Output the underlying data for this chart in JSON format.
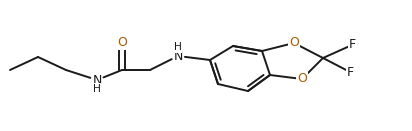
{
  "bg_color": "#ffffff",
  "bond_color": "#1a1a1a",
  "atom_color_O": "#b05a00",
  "atom_color_N": "#1a1a1a",
  "atom_color_F": "#1a1a1a",
  "line_width": 1.4,
  "font_size": 9.0,
  "figsize": [
    4.12,
    1.31
  ],
  "dpi": 100,
  "xlim": [
    0,
    412
  ],
  "ylim": [
    0,
    131
  ]
}
